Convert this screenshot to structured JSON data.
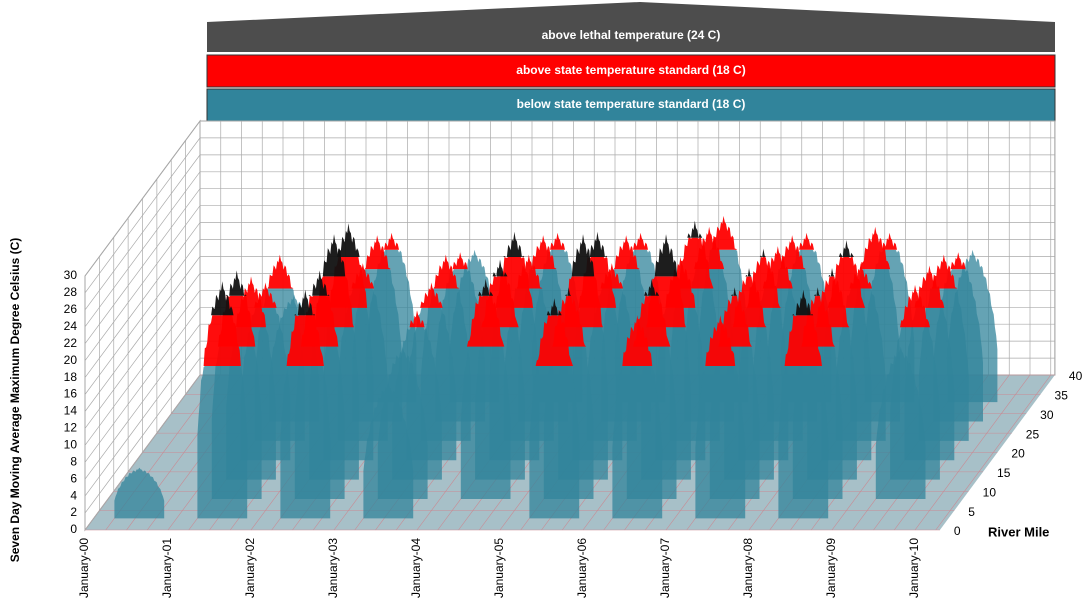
{
  "chart_data": {
    "type": "3d-area",
    "zlabel": "Seven Day Moving Average Maximum Degree Celsius (C)",
    "ylabel": "River Mile",
    "categories": [
      "January-00",
      "January-01",
      "January-02",
      "January-03",
      "January-04",
      "January-05",
      "January-06",
      "January-07",
      "January-08",
      "January-09",
      "January-10"
    ],
    "zlim": [
      0,
      30
    ],
    "zticks": [
      0,
      2,
      4,
      6,
      8,
      10,
      12,
      14,
      16,
      18,
      20,
      22,
      24,
      26,
      28,
      30
    ],
    "ylim": [
      0,
      40
    ],
    "yticks": [
      0,
      5,
      10,
      15,
      20,
      25,
      30,
      35,
      40
    ],
    "bands": [
      {
        "name": "above lethal temperature (24 C)",
        "color": "#4d4d4d",
        "threshold": 24
      },
      {
        "name": "above state temperature standard (18 C)",
        "color": "#ff0000",
        "threshold": 18
      },
      {
        "name": "below state temperature standard (18 C)",
        "color": "#31849b"
      }
    ],
    "series": [
      {
        "river_mile": 33,
        "values": [
          null,
          null,
          20,
          18,
          20,
          20,
          22,
          20,
          20,
          18,
          null
        ]
      },
      {
        "river_mile": 28,
        "values": [
          null,
          15,
          22,
          20,
          22,
          22,
          23,
          22,
          23,
          20,
          null
        ]
      },
      {
        "river_mile": 23,
        "values": [
          null,
          22,
          21,
          22,
          22,
          21,
          26,
          23,
          21,
          22,
          null
        ]
      },
      {
        "river_mile": 18,
        "values": [
          null,
          21,
          28,
          21,
          27,
          27,
          24,
          25,
          26,
          23,
          null
        ]
      },
      {
        "river_mile": 13,
        "values": [
          null,
          24,
          29,
          20,
          26,
          29,
          29,
          25,
          25,
          23,
          null
        ]
      },
      {
        "river_mile": 8,
        "values": [
          null,
          27,
          27,
          18,
          26,
          25,
          26,
          25,
          25,
          18,
          null
        ]
      },
      {
        "river_mile": 3,
        "values": [
          6,
          28,
          27,
          16,
          null,
          26,
          24,
          24,
          27,
          null,
          null
        ]
      }
    ]
  }
}
